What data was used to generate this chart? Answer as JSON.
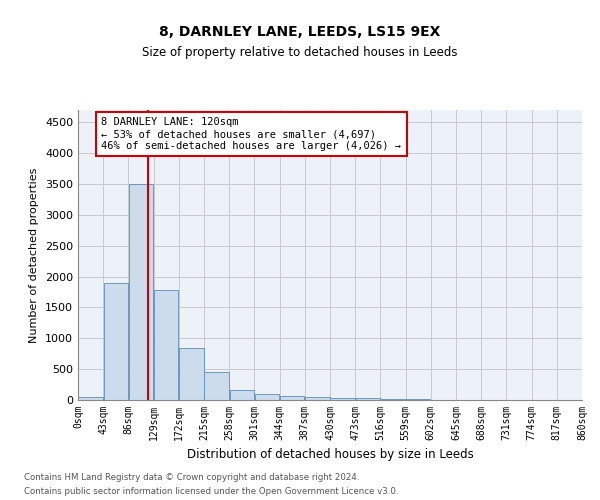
{
  "title1": "8, DARNLEY LANE, LEEDS, LS15 9EX",
  "title2": "Size of property relative to detached houses in Leeds",
  "xlabel": "Distribution of detached houses by size in Leeds",
  "ylabel": "Number of detached properties",
  "bin_labels": [
    "0sqm",
    "43sqm",
    "86sqm",
    "129sqm",
    "172sqm",
    "215sqm",
    "258sqm",
    "301sqm",
    "344sqm",
    "387sqm",
    "430sqm",
    "473sqm",
    "516sqm",
    "559sqm",
    "602sqm",
    "645sqm",
    "688sqm",
    "731sqm",
    "774sqm",
    "817sqm",
    "860sqm"
  ],
  "bar_heights": [
    50,
    1900,
    3500,
    1780,
    850,
    460,
    160,
    100,
    65,
    55,
    35,
    25,
    15,
    10,
    5,
    3,
    2,
    1,
    1,
    0
  ],
  "bar_color": "#cddcec",
  "bar_edge_color": "#5b8db8",
  "grid_color": "#c8c8d0",
  "background_color": "#edf1f8",
  "annotation_text": "8 DARNLEY LANE: 120sqm\n← 53% of detached houses are smaller (4,697)\n46% of semi-detached houses are larger (4,026) →",
  "annotation_box_color": "#ffffff",
  "annotation_box_edge_color": "#cc0000",
  "vline_color": "#cc0000",
  "ylim": [
    0,
    4700
  ],
  "yticks": [
    0,
    500,
    1000,
    1500,
    2000,
    2500,
    3000,
    3500,
    4000,
    4500
  ],
  "bin_width": 43,
  "footer_line1": "Contains HM Land Registry data © Crown copyright and database right 2024.",
  "footer_line2": "Contains public sector information licensed under the Open Government Licence v3.0."
}
